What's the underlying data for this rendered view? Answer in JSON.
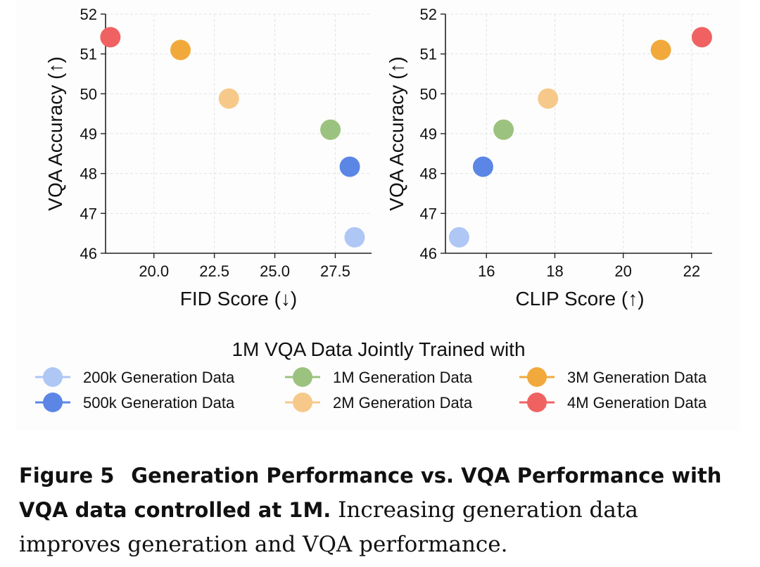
{
  "chart_data": [
    {
      "type": "scatter",
      "title": "",
      "xlabel": "FID Score (↓)",
      "ylabel": "VQA Accuracy (↑)",
      "xlim": [
        18.0,
        29.0
      ],
      "ylim": [
        46,
        52
      ],
      "xticks": [
        20.0,
        22.5,
        25.0,
        27.5
      ],
      "xtick_labels": [
        "20.0",
        "22.5",
        "25.0",
        "27.5"
      ],
      "yticks": [
        46,
        47,
        48,
        49,
        50,
        51,
        52
      ],
      "ytick_labels": [
        "46",
        "47",
        "48",
        "49",
        "50",
        "51",
        "52"
      ],
      "grid": true,
      "series": [
        {
          "name": "200k Generation Data",
          "x": 28.3,
          "y": 46.4
        },
        {
          "name": "500k Generation Data",
          "x": 28.1,
          "y": 48.17
        },
        {
          "name": "1M Generation Data",
          "x": 27.3,
          "y": 49.1
        },
        {
          "name": "2M Generation Data",
          "x": 23.1,
          "y": 49.88
        },
        {
          "name": "3M Generation Data",
          "x": 21.1,
          "y": 51.1
        },
        {
          "name": "4M Generation Data",
          "x": 18.2,
          "y": 51.42
        }
      ]
    },
    {
      "type": "scatter",
      "title": "",
      "xlabel": "CLIP Score (↑)",
      "ylabel": "VQA Accuracy (↑)",
      "xlim": [
        14.8,
        22.6
      ],
      "ylim": [
        46,
        52
      ],
      "xticks": [
        16,
        18,
        20,
        22
      ],
      "xtick_labels": [
        "16",
        "18",
        "20",
        "22"
      ],
      "yticks": [
        46,
        47,
        48,
        49,
        50,
        51,
        52
      ],
      "ytick_labels": [
        "46",
        "47",
        "48",
        "49",
        "50",
        "51",
        "52"
      ],
      "grid": true,
      "series": [
        {
          "name": "200k Generation Data",
          "x": 15.2,
          "y": 46.4
        },
        {
          "name": "500k Generation Data",
          "x": 15.9,
          "y": 48.17
        },
        {
          "name": "1M Generation Data",
          "x": 16.5,
          "y": 49.1
        },
        {
          "name": "2M Generation Data",
          "x": 17.8,
          "y": 49.88
        },
        {
          "name": "3M Generation Data",
          "x": 21.1,
          "y": 51.1
        },
        {
          "name": "4M Generation Data",
          "x": 22.3,
          "y": 51.42
        }
      ]
    }
  ],
  "legend": {
    "title": "1M VQA Data Jointly Trained with",
    "placement": "bottom",
    "items": [
      {
        "label": "200k Generation Data",
        "color": "#aec7f5"
      },
      {
        "label": "500k Generation Data",
        "color": "#5b86e5"
      },
      {
        "label": "1M Generation Data",
        "color": "#9cc27f"
      },
      {
        "label": "2M Generation Data",
        "color": "#f6c98b"
      },
      {
        "label": "3M Generation Data",
        "color": "#f2a93b"
      },
      {
        "label": "4M Generation Data",
        "color": "#f06262"
      }
    ]
  },
  "caption": {
    "figure_number": "Figure 5",
    "title": "Generation Performance vs. VQA Performance with VQA data controlled at 1M.",
    "text": "Increasing generation data improves generation and VQA performance."
  }
}
